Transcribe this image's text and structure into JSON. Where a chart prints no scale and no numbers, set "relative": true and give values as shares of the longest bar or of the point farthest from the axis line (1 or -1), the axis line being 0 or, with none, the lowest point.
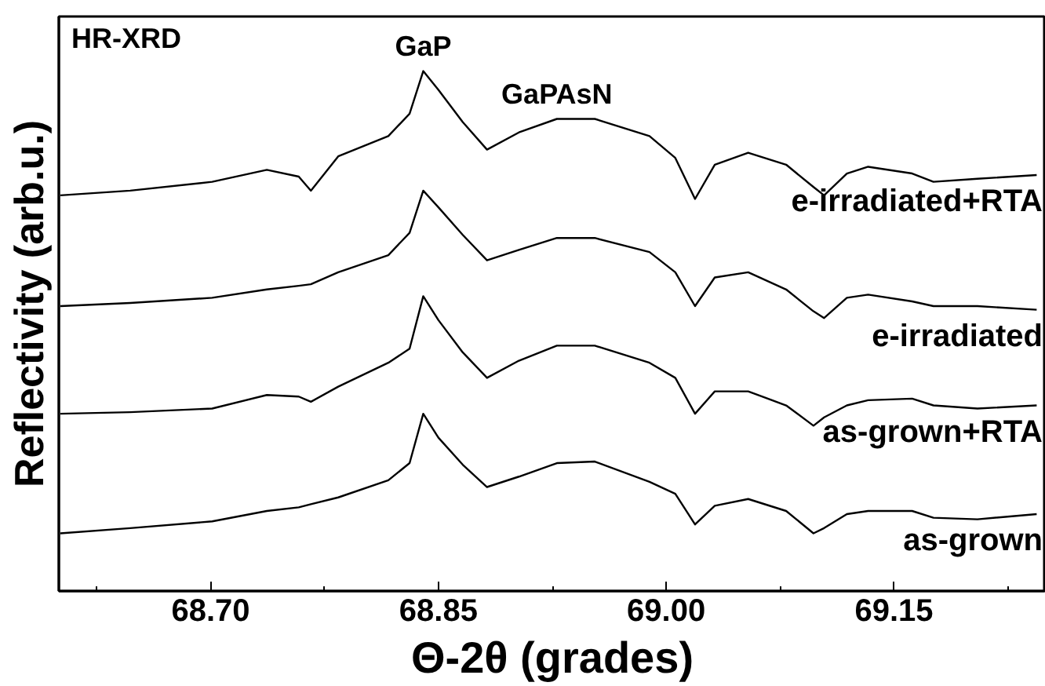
{
  "chart_data": {
    "type": "line",
    "relative": true,
    "xlabel": "Θ-2θ (grades)",
    "ylabel": "Reflectivity (arb.u.)",
    "annotations": [
      "HR-XRD",
      {
        "text": "GaP",
        "x": 68.84,
        "y": 1.0
      },
      {
        "text": "GaPAsN",
        "x": 68.928,
        "y": 0.908
      }
    ],
    "xlim": [
      68.6,
      69.25
    ],
    "xticks": [
      {
        "value": 68.7,
        "label": "68.70"
      },
      {
        "value": 68.85,
        "label": "68.85"
      },
      {
        "value": 69.0,
        "label": "69.00"
      },
      {
        "value": 69.15,
        "label": "69.15"
      }
    ],
    "tick_labels": "x",
    "x": [
      68.601,
      68.647,
      68.701,
      68.737,
      68.758,
      68.766,
      68.784,
      68.817,
      68.831,
      68.84,
      68.85,
      68.866,
      68.882,
      68.903,
      68.928,
      68.953,
      68.989,
      69.006,
      69.019,
      69.032,
      69.054,
      69.079,
      69.097,
      69.104,
      69.119,
      69.133,
      69.162,
      69.176,
      69.205,
      69.244
    ],
    "series": [
      {
        "name": "e-irradiated+RTA",
        "color": "#000000",
        "values": [
          0.761,
          0.77,
          0.787,
          0.81,
          0.797,
          0.77,
          0.836,
          0.875,
          0.918,
          1.0,
          0.964,
          0.902,
          0.849,
          0.882,
          0.908,
          0.908,
          0.875,
          0.833,
          0.754,
          0.82,
          0.843,
          0.82,
          0.777,
          0.761,
          0.803,
          0.816,
          0.803,
          0.787,
          0.793,
          0.8
        ]
      },
      {
        "name": "e-irradiated",
        "color": "#000000",
        "values": [
          0.548,
          0.554,
          0.564,
          0.58,
          0.587,
          0.59,
          0.613,
          0.646,
          0.689,
          0.77,
          0.738,
          0.685,
          0.636,
          0.656,
          0.679,
          0.679,
          0.652,
          0.613,
          0.548,
          0.603,
          0.613,
          0.58,
          0.538,
          0.525,
          0.564,
          0.57,
          0.557,
          0.548,
          0.548,
          0.541
        ]
      },
      {
        "name": "as-grown+RTA",
        "color": "#000000",
        "values": [
          0.341,
          0.344,
          0.351,
          0.377,
          0.374,
          0.364,
          0.393,
          0.439,
          0.466,
          0.567,
          0.521,
          0.459,
          0.41,
          0.443,
          0.472,
          0.472,
          0.439,
          0.41,
          0.341,
          0.384,
          0.384,
          0.357,
          0.318,
          0.334,
          0.357,
          0.367,
          0.37,
          0.357,
          0.351,
          0.357
        ]
      },
      {
        "name": "as-grown",
        "color": "#000000",
        "values": [
          0.111,
          0.121,
          0.134,
          0.154,
          0.161,
          0.167,
          0.18,
          0.213,
          0.246,
          0.341,
          0.295,
          0.243,
          0.2,
          0.22,
          0.246,
          0.249,
          0.21,
          0.187,
          0.128,
          0.164,
          0.177,
          0.154,
          0.111,
          0.121,
          0.148,
          0.154,
          0.154,
          0.141,
          0.138,
          0.148
        ]
      }
    ]
  }
}
